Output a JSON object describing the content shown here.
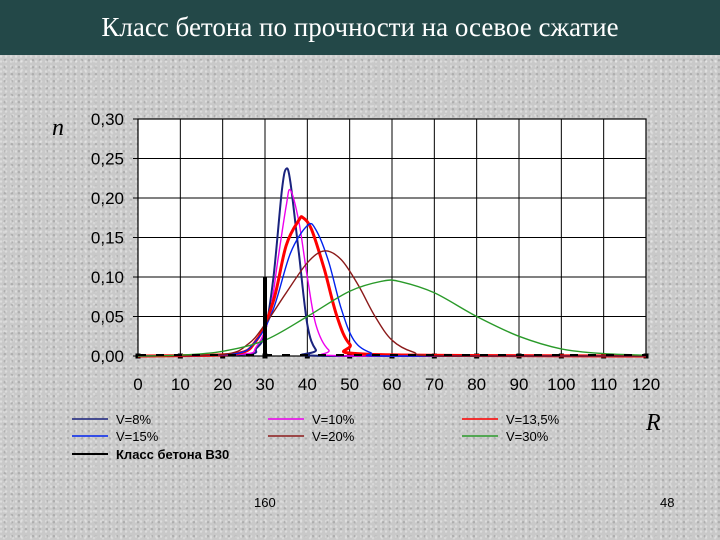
{
  "slide": {
    "title": "Класс бетона по прочности на осевое сжатие",
    "footer_left": "160",
    "footer_right": "48",
    "colors": {
      "title_bar": "#234848",
      "title_text": "#ffffff",
      "background": "#c9c9c9"
    }
  },
  "chart_data": {
    "type": "line",
    "title": "",
    "xlabel": "R",
    "ylabel": "n",
    "xlim": [
      0,
      120
    ],
    "ylim": [
      0,
      0.3
    ],
    "x_ticks": [
      "0",
      "10",
      "20",
      "30",
      "40",
      "50",
      "60",
      "70",
      "80",
      "90",
      "100",
      "110",
      "120"
    ],
    "y_ticks": [
      "0,00",
      "0,05",
      "0,10",
      "0,15",
      "0,20",
      "0,25",
      "0,30"
    ],
    "grid": true,
    "legend_position": "bottom",
    "series": [
      {
        "name": "V=8%",
        "color": "#1a237e",
        "mean": 34.6,
        "peak": 0.237,
        "points": [
          [
            25,
            0.002
          ],
          [
            28,
            0.01
          ],
          [
            30,
            0.03
          ],
          [
            32,
            0.1
          ],
          [
            34,
            0.21
          ],
          [
            35,
            0.237
          ],
          [
            36,
            0.22
          ],
          [
            38,
            0.13
          ],
          [
            40,
            0.04
          ],
          [
            42,
            0.008
          ],
          [
            45,
            0.0
          ],
          [
            120,
            0.0
          ]
        ]
      },
      {
        "name": "V=10%",
        "color": "#ee00ee",
        "mean": 35.7,
        "peak": 0.21,
        "points": [
          [
            24,
            0.002
          ],
          [
            28,
            0.012
          ],
          [
            31,
            0.05
          ],
          [
            33,
            0.12
          ],
          [
            35,
            0.19
          ],
          [
            36,
            0.21
          ],
          [
            38,
            0.17
          ],
          [
            40,
            0.1
          ],
          [
            42,
            0.04
          ],
          [
            45,
            0.008
          ],
          [
            50,
            0.0
          ],
          [
            120,
            0.0
          ]
        ]
      },
      {
        "name": "V=13,5%",
        "color": "#ff0000",
        "mean": 38.6,
        "peak": 0.175,
        "points": [
          [
            22,
            0.002
          ],
          [
            28,
            0.02
          ],
          [
            32,
            0.07
          ],
          [
            35,
            0.14
          ],
          [
            38,
            0.172
          ],
          [
            39,
            0.175
          ],
          [
            41,
            0.16
          ],
          [
            44,
            0.11
          ],
          [
            47,
            0.05
          ],
          [
            50,
            0.015
          ],
          [
            55,
            0.002
          ],
          [
            120,
            0.0
          ]
        ]
      },
      {
        "name": "V=15%",
        "color": "#0022ee",
        "mean": 40.1,
        "peak": 0.165,
        "points": [
          [
            22,
            0.002
          ],
          [
            28,
            0.02
          ],
          [
            32,
            0.06
          ],
          [
            36,
            0.13
          ],
          [
            40,
            0.165
          ],
          [
            42,
            0.16
          ],
          [
            45,
            0.12
          ],
          [
            48,
            0.06
          ],
          [
            51,
            0.02
          ],
          [
            55,
            0.004
          ],
          [
            60,
            0.0
          ],
          [
            120,
            0.0
          ]
        ]
      },
      {
        "name": "V=20%",
        "color": "#8b1a1a",
        "mean": 44.7,
        "peak": 0.133,
        "points": [
          [
            20,
            0.002
          ],
          [
            26,
            0.015
          ],
          [
            30,
            0.04
          ],
          [
            35,
            0.08
          ],
          [
            40,
            0.118
          ],
          [
            44,
            0.133
          ],
          [
            48,
            0.122
          ],
          [
            52,
            0.09
          ],
          [
            56,
            0.05
          ],
          [
            60,
            0.02
          ],
          [
            65,
            0.005
          ],
          [
            72,
            0.0
          ],
          [
            120,
            0.0
          ]
        ]
      },
      {
        "name": "V=30%",
        "color": "#2a9a2a",
        "mean": 60.0,
        "peak": 0.095,
        "points": [
          [
            10,
            0.001
          ],
          [
            20,
            0.006
          ],
          [
            30,
            0.02
          ],
          [
            40,
            0.05
          ],
          [
            50,
            0.082
          ],
          [
            58,
            0.095
          ],
          [
            62,
            0.094
          ],
          [
            70,
            0.08
          ],
          [
            80,
            0.05
          ],
          [
            90,
            0.025
          ],
          [
            100,
            0.009
          ],
          [
            110,
            0.003
          ],
          [
            120,
            0.001
          ]
        ]
      },
      {
        "name": "Класс бетона В30",
        "color": "#000000",
        "marker_x": 30,
        "marker_top": 0.1
      }
    ]
  }
}
